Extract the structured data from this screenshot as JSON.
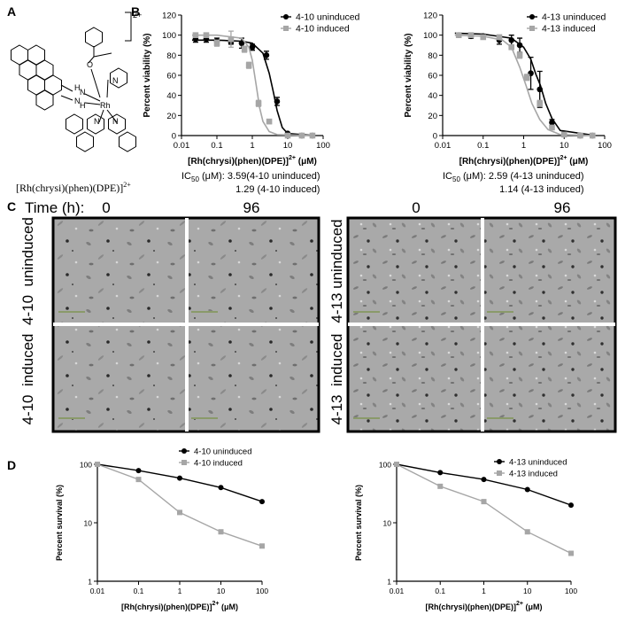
{
  "figure": {
    "panel_labels": [
      "A",
      "B",
      "C",
      "D"
    ]
  },
  "structure": {
    "name_main": "[Rh(chrysi)(phen)(DPE)]",
    "name_sup": "2+",
    "charge": "2+",
    "atoms": [
      "H",
      "N",
      "N",
      "H",
      "Rh",
      "O",
      "N",
      "N",
      "N"
    ]
  },
  "microscopy": {
    "time_label": "Time (h):",
    "times": [
      "0",
      "96",
      "0",
      "96"
    ],
    "rows": [
      "4-10  uninduced",
      "4-10  induced",
      "4-13 uninduced",
      "4-13  induced"
    ]
  },
  "chart_data": [
    {
      "type": "dose_response",
      "ylabel": "Percent viability (%)",
      "xlabel": {
        "text": "[Rh(chrysi)(phen)(DPE)]",
        "superscript": "2+",
        "unit": " (μM)"
      },
      "xscale": "log",
      "xlim": [
        0.01,
        100
      ],
      "xticks": [
        0.01,
        0.1,
        1,
        10,
        100
      ],
      "ylim": [
        0,
        120
      ],
      "yticks": [
        0,
        20,
        40,
        60,
        80,
        100,
        120
      ],
      "legend": "upper right",
      "series": [
        {
          "name": "4-10 uninduced",
          "color": "#000000",
          "marker": "circle",
          "x": [
            0.025,
            0.05,
            0.1,
            0.25,
            0.5,
            1,
            2.5,
            5,
            10,
            25,
            50
          ],
          "values": [
            96,
            96,
            94,
            93,
            92,
            88,
            80,
            34,
            2,
            0,
            0
          ],
          "errors": [
            3,
            3,
            3,
            2,
            5,
            3,
            4,
            4,
            1,
            1,
            1
          ],
          "fit_x": [
            0.02,
            0.1,
            0.5,
            1,
            2,
            3,
            4,
            5,
            7,
            10,
            60
          ],
          "fit_values": [
            95,
            95,
            94,
            92,
            82,
            62,
            42,
            25,
            8,
            2,
            0
          ]
        },
        {
          "name": "4-10 induced",
          "color": "#a6a6a6",
          "marker": "square",
          "x": [
            0.025,
            0.05,
            0.1,
            0.25,
            0.6,
            0.8,
            1.5,
            3,
            10,
            25,
            50
          ],
          "values": [
            100,
            100,
            92,
            96,
            86,
            70,
            32,
            14,
            0,
            0,
            0
          ],
          "errors": [
            1,
            1,
            3,
            8,
            3,
            3,
            3,
            2,
            1,
            1,
            1
          ],
          "fit_x": [
            0.02,
            0.1,
            0.5,
            0.8,
            1,
            1.29,
            1.6,
            2,
            3,
            5,
            60
          ],
          "fit_values": [
            100,
            100,
            97,
            88,
            75,
            50,
            28,
            14,
            4,
            1,
            0
          ]
        }
      ],
      "annotation": {
        "prefix": "IC",
        "subscript": "50",
        "line1": " (μM): 3.59(4-10 uninduced)",
        "line2": "1.29 (4-10 induced)"
      }
    },
    {
      "type": "dose_response",
      "ylabel": "Percent viability (%)",
      "xlabel": {
        "text": "[Rh(chrysi)(phen)(DPE)]",
        "superscript": "2+",
        "unit": " (μM)"
      },
      "xscale": "log",
      "xlim": [
        0.01,
        100
      ],
      "xticks": [
        0.01,
        0.1,
        1,
        10,
        100
      ],
      "ylim": [
        0,
        120
      ],
      "yticks": [
        0,
        20,
        40,
        60,
        80,
        100,
        120
      ],
      "legend": "upper right",
      "series": [
        {
          "name": "4-13 uninduced",
          "color": "#000000",
          "marker": "circle",
          "x": [
            0.025,
            0.05,
            0.1,
            0.25,
            0.5,
            0.8,
            1.5,
            2.5,
            5,
            10,
            25,
            50
          ],
          "values": [
            100,
            99,
            99,
            95,
            95,
            90,
            62,
            46,
            13,
            1,
            0,
            0
          ],
          "errors": [
            2,
            2,
            2,
            4,
            5,
            7,
            16,
            18,
            3,
            1,
            1,
            1
          ],
          "fit_x": [
            0.02,
            0.1,
            0.5,
            1,
            1.5,
            2,
            2.59,
            3.5,
            5,
            8,
            60
          ],
          "fit_values": [
            102,
            101,
            97,
            88,
            76,
            61,
            50,
            32,
            17,
            5,
            0
          ]
        },
        {
          "name": "4-13 induced",
          "color": "#a6a6a6",
          "marker": "square",
          "x": [
            0.025,
            0.05,
            0.1,
            0.25,
            0.5,
            0.8,
            1.2,
            2.5,
            5,
            10,
            25,
            50
          ],
          "values": [
            100,
            100,
            98,
            98,
            88,
            80,
            58,
            32,
            8,
            1,
            0,
            0
          ],
          "errors": [
            1,
            1,
            1,
            2,
            2,
            3,
            3,
            3,
            2,
            1,
            1,
            1
          ],
          "fit_x": [
            0.02,
            0.1,
            0.3,
            0.5,
            0.8,
            1.14,
            1.6,
            2.5,
            4,
            8,
            60
          ],
          "fit_values": [
            100,
            99,
            95,
            88,
            68,
            50,
            32,
            16,
            6,
            1,
            0
          ]
        }
      ],
      "annotation": {
        "prefix": "IC",
        "subscript": "50",
        "line1": " (μM): 2.59 (4-13 uninduced)",
        "line2": "1.14 (4-13 induced)"
      }
    },
    {
      "type": "line",
      "ylabel": "Percent survival (%)",
      "xlabel": {
        "text": "[Rh(chrysi)(phen)(DPE)]",
        "superscript": "2+",
        "unit": " (μM)"
      },
      "xscale": "log",
      "yscale": "log",
      "xlim": [
        0.01,
        100
      ],
      "xticks": [
        0.01,
        0.1,
        1,
        10,
        100
      ],
      "ylim": [
        1,
        100
      ],
      "yticks": [
        1,
        10,
        100
      ],
      "legend": "upper right",
      "series": [
        {
          "name": "4-10 uninduced",
          "color": "#000000",
          "marker": "circle",
          "x": [
            0.01,
            0.1,
            1,
            10,
            100
          ],
          "values": [
            100,
            78,
            58,
            40,
            23
          ]
        },
        {
          "name": "4-10 induced",
          "color": "#a6a6a6",
          "marker": "square",
          "x": [
            0.01,
            0.1,
            1,
            10,
            100
          ],
          "values": [
            100,
            55,
            15,
            7,
            4
          ]
        }
      ]
    },
    {
      "type": "line",
      "ylabel": "Percent survival (%)",
      "xlabel": {
        "text": "[Rh(chrysi)(phen)(DPE)]",
        "superscript": "2+",
        "unit": " (μM)"
      },
      "xscale": "log",
      "yscale": "log",
      "xlim": [
        0.01,
        100
      ],
      "xticks": [
        0.01,
        0.1,
        1,
        10,
        100
      ],
      "ylim": [
        1,
        100
      ],
      "yticks": [
        1,
        10,
        100
      ],
      "legend": "upper right",
      "series": [
        {
          "name": "4-13 uninduced",
          "color": "#000000",
          "marker": "circle",
          "x": [
            0.01,
            0.1,
            1,
            10,
            100
          ],
          "values": [
            100,
            72,
            55,
            37,
            20
          ]
        },
        {
          "name": "4-13 induced",
          "color": "#a6a6a6",
          "marker": "square",
          "x": [
            0.01,
            0.1,
            1,
            10,
            100
          ],
          "values": [
            100,
            42,
            23,
            7,
            3
          ]
        }
      ]
    }
  ]
}
